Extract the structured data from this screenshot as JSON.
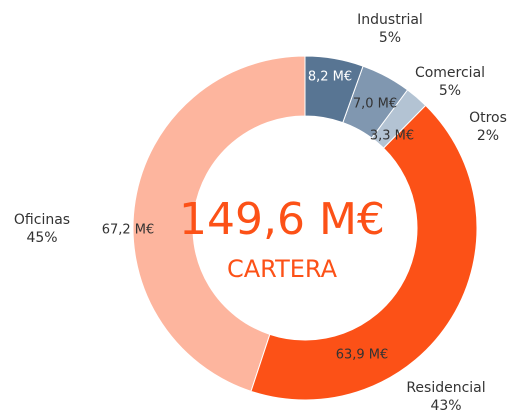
{
  "chart_data": {
    "type": "donut",
    "categories": [
      "Industrial",
      "Comercial",
      "Otros",
      "Residencial",
      "Oficinas"
    ],
    "percent_labels": [
      "5%",
      "5%",
      "2%",
      "43%",
      "45%"
    ],
    "values": [
      8.2,
      7.0,
      3.3,
      63.9,
      67.2
    ],
    "value_labels": [
      "8,2 M€",
      "7,0 M€",
      "3,3 M€",
      "63,9 M€",
      "67,2 M€"
    ],
    "colors": [
      "#587593",
      "#8097b0",
      "#b3c3d3",
      "#fc5117",
      "#fdb59e"
    ],
    "center_value_label": "149,6 M€",
    "center_label": "CARTERA"
  }
}
